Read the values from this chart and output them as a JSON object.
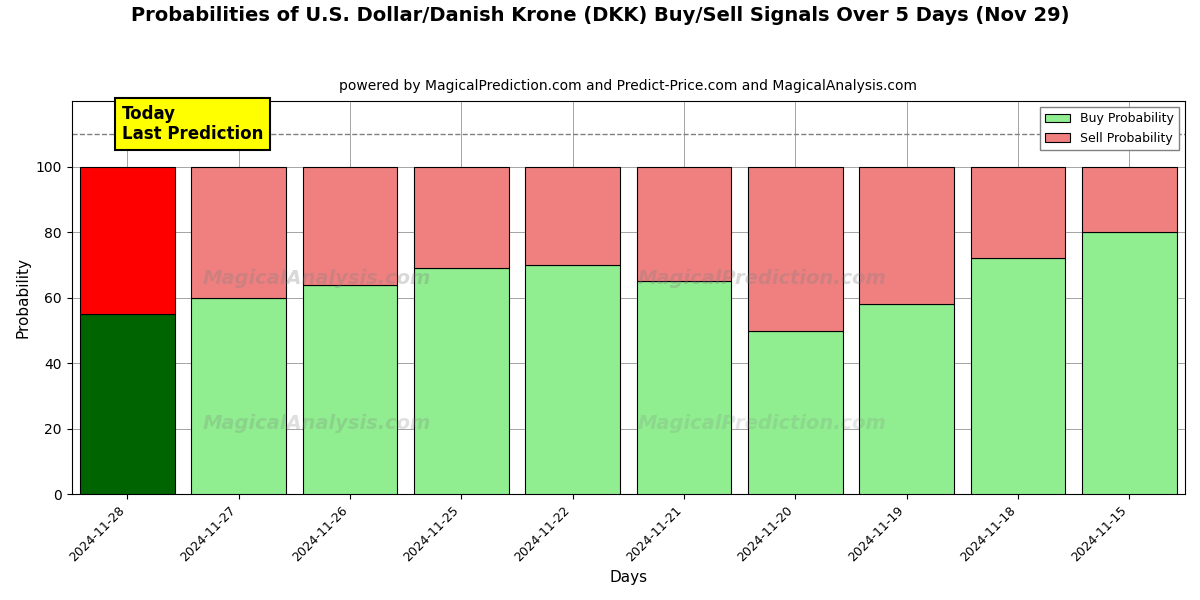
{
  "title": "Probabilities of U.S. Dollar/Danish Krone (DKK) Buy/Sell Signals Over 5 Days (Nov 29)",
  "subtitle": "powered by MagicalPrediction.com and Predict-Price.com and MagicalAnalysis.com",
  "xlabel": "Days",
  "ylabel": "Probability",
  "dates": [
    "2024-11-28",
    "2024-11-27",
    "2024-11-26",
    "2024-11-25",
    "2024-11-22",
    "2024-11-21",
    "2024-11-20",
    "2024-11-19",
    "2024-11-18",
    "2024-11-15"
  ],
  "buy_values": [
    55,
    60,
    64,
    69,
    70,
    65,
    50,
    58,
    72,
    80
  ],
  "sell_values": [
    45,
    40,
    36,
    31,
    30,
    35,
    50,
    42,
    28,
    20
  ],
  "today_bar_buy_color": "#006400",
  "today_bar_sell_color": "#FF0000",
  "normal_bar_buy_color": "#90EE90",
  "normal_bar_sell_color": "#F08080",
  "bar_edge_color": "#000000",
  "ylim": [
    0,
    120
  ],
  "yticks": [
    0,
    20,
    40,
    60,
    80,
    100
  ],
  "dashed_line_y": 110,
  "legend_buy_label": "Buy Probability",
  "legend_sell_label": "Sell Probability",
  "today_label_text": "Today\nLast Prediction",
  "today_label_bg": "#FFFF00",
  "bg_color": "#F5F5DC",
  "figsize": [
    12,
    6
  ],
  "dpi": 100,
  "title_fontsize": 14,
  "subtitle_fontsize": 10,
  "bar_width": 0.85
}
